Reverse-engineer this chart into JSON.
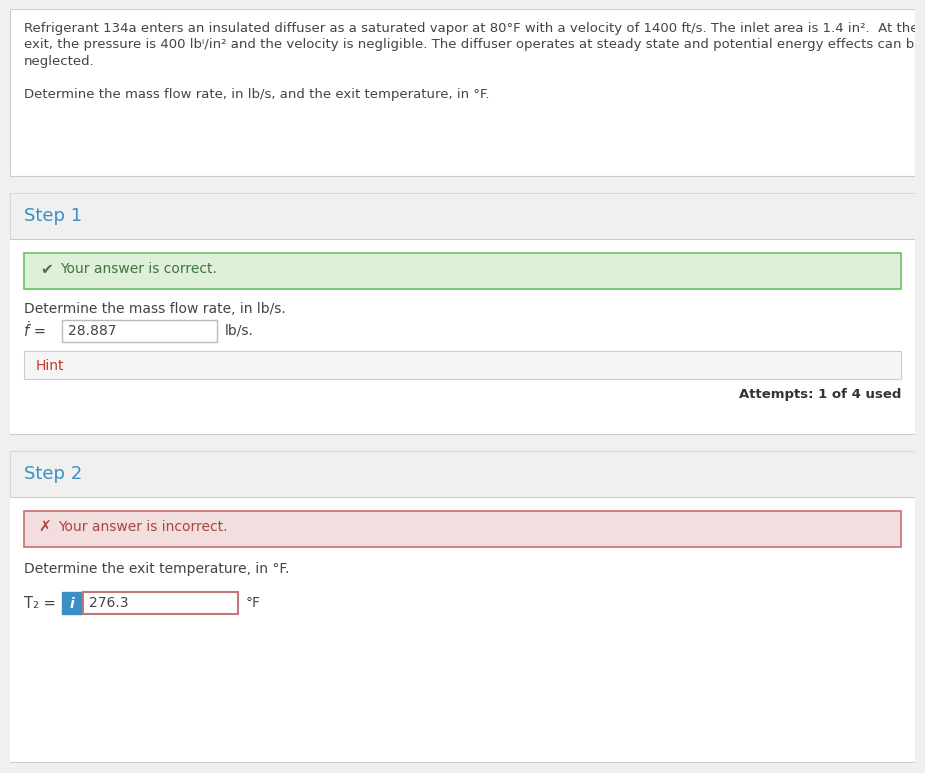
{
  "bg_color": "#f0f0f0",
  "white": "#ffffff",
  "section_bg": "#f0f0f0",
  "divider_color": "#cccccc",
  "text_color": "#444444",
  "step_color": "#3a8fc7",
  "step1_correct_bg": "#dff0d8",
  "step1_correct_border": "#6abf69",
  "step1_correct_text_color": "#3c763d",
  "step2_incorrect_bg": "#f2dede",
  "step2_incorrect_border": "#c9706e",
  "step2_incorrect_text_color": "#a94442",
  "info_btn_color": "#3a8fc7",
  "hint_color": "#c0392b",
  "input_border": "#bbbbbb",
  "input_border_incorrect": "#c0787a",
  "attempts_color": "#333333",
  "prob_line1": "Refrigerant 134a enters an insulated diffuser as a saturated vapor at 80°F with a velocity of 1400 ft/s. The inlet area is 1.4 in².  At the",
  "prob_line2": "exit, the pressure is 400 lbⁱ/in² and the velocity is negligible. The diffuser operates at steady state and potential energy effects can be",
  "prob_line3": "neglected.",
  "prob_line4": "",
  "prob_line5": "Determine the mass flow rate, in lb/s, and the exit temperature, in °F.",
  "step1_label": "Step 1",
  "step1_correct_msg": "Your answer is correct.",
  "step1_desc": "Determine the mass flow rate, in lb/s.",
  "mdot_label": "ḟ =",
  "mdot_value": "28.887",
  "mdot_unit": "lb/s.",
  "hint_label": "Hint",
  "attempts_text": "Attempts: 1 of 4 used",
  "step2_label": "Step 2",
  "step2_incorrect_msg": "Your answer is incorrect.",
  "step2_desc": "Determine the exit temperature, in °F.",
  "t2_label": "T₂ =",
  "t2_value": "276.3",
  "t2_unit": "°F"
}
